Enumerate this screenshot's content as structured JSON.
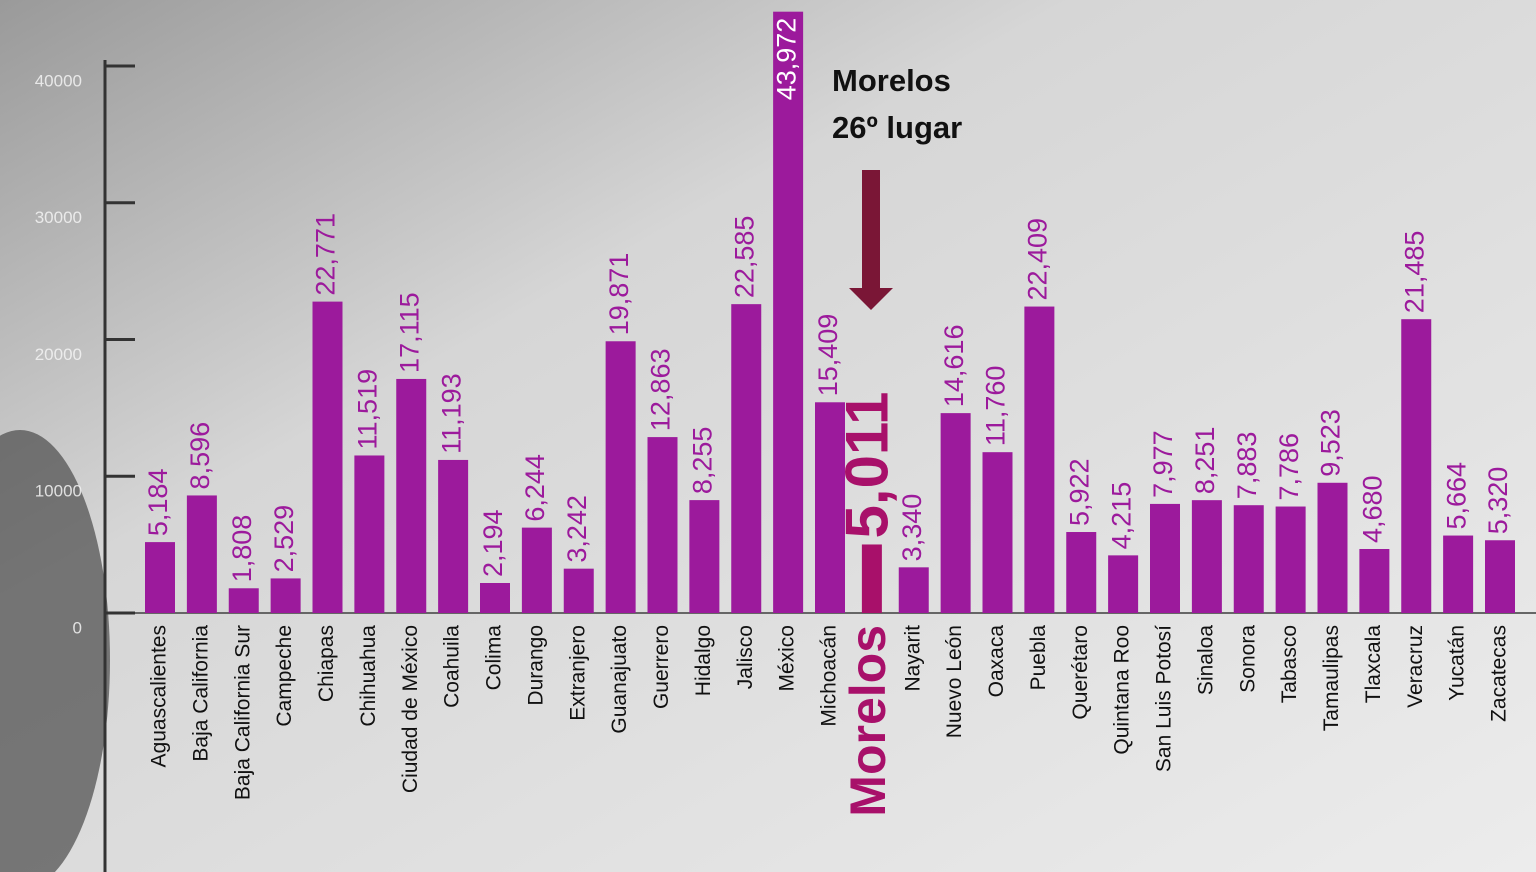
{
  "chart_data": {
    "type": "bar",
    "categories": [
      "Aguascalientes",
      "Baja California",
      "Baja California Sur",
      "Campeche",
      "Chiapas",
      "Chihuahua",
      "Ciudad de México",
      "Coahuila",
      "Colima",
      "Durango",
      "Extranjero",
      "Guanajuato",
      "Guerrero",
      "Hidalgo",
      "Jalisco",
      "México",
      "Michoacán",
      "Morelos",
      "Nayarit",
      "Nuevo León",
      "Oaxaca",
      "Puebla",
      "Querétaro",
      "Quintana Roo",
      "San Luis Potosí",
      "Sinaloa",
      "Sonora",
      "Tabasco",
      "Tamaulipas",
      "Tlaxcala",
      "Veracruz",
      "Yucatán",
      "Zacatecas"
    ],
    "values": [
      5184,
      8596,
      1808,
      2529,
      22771,
      11519,
      17115,
      11193,
      2194,
      6244,
      3242,
      19871,
      12863,
      8255,
      22585,
      43972,
      15409,
      5011,
      3340,
      14616,
      11760,
      22409,
      5922,
      4215,
      7977,
      8251,
      7883,
      7786,
      9523,
      4680,
      21485,
      5664,
      5320
    ],
    "value_labels": [
      "5,184",
      "8,596",
      "1,808",
      "2,529",
      "22,771",
      "11,519",
      "17,115",
      "11,193",
      "2,194",
      "6,244",
      "3,242",
      "19,871",
      "12,863",
      "8,255",
      "22,585",
      "43,972",
      "15,409",
      "5,011",
      "3,340",
      "14,616",
      "11,760",
      "22,409",
      "5,922",
      "4,215",
      "7,977",
      "8,251",
      "7,883",
      "7,786",
      "9,523",
      "4,680",
      "21,485",
      "5,664",
      "5,320"
    ],
    "color": "#9c1a9c",
    "highlight": "Morelos",
    "highlight_color": "#a8106a",
    "annotation": [
      "Morelos",
      "26º lugar"
    ],
    "annotation_color": "#7a1636",
    "ylim": [
      0,
      40000
    ],
    "yticks": [
      0,
      10000,
      20000,
      30000,
      40000
    ]
  }
}
